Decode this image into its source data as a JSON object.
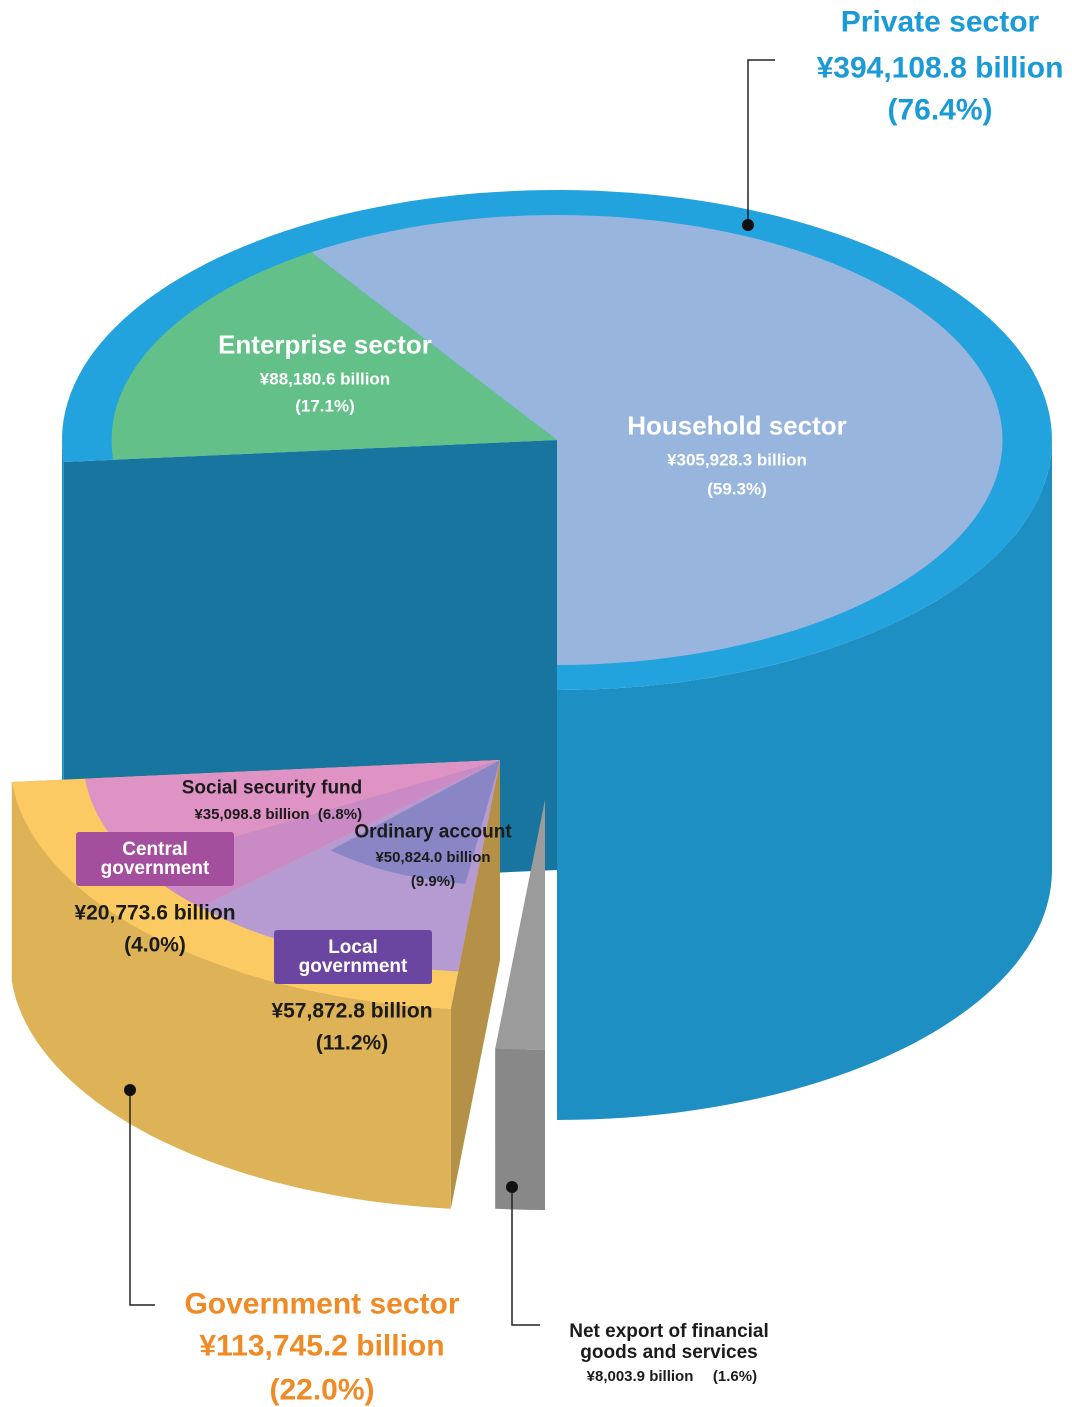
{
  "chart_data": {
    "type": "pie",
    "segments": [
      {
        "name": "Private sector",
        "value": 394108.8,
        "value_label": "¥394,108.8 billion",
        "percent": 76.4,
        "percent_label": "(76.4%)",
        "color": "#22a3de",
        "parts": [
          {
            "name": "Household sector",
            "value": 305928.3,
            "value_label": "¥305,928.3 billion",
            "percent": 59.3,
            "percent_label": "(59.3%)",
            "color": "#97b5dd"
          },
          {
            "name": "Enterprise sector",
            "value": 88180.6,
            "value_label": "¥88,180.6 billion",
            "percent": 17.1,
            "percent_label": "(17.1%)",
            "color": "#63c088"
          }
        ]
      },
      {
        "name": "Government sector",
        "value": 113745.2,
        "value_label": "¥113,745.2 billion",
        "percent": 22.0,
        "percent_label": "(22.0%)",
        "color": "#fcca62",
        "parts": [
          {
            "name": "Social security fund",
            "value": 35098.8,
            "value_label": "¥35,098.8 billion",
            "percent": 6.8,
            "percent_label": "(6.8%)",
            "color": "#df92c4"
          },
          {
            "name": "Central government",
            "value": 20773.6,
            "value_label": "¥20,773.6 billion",
            "percent": 4.0,
            "percent_label": "(4.0%)",
            "color": "#c98ac6"
          },
          {
            "name": "Local government",
            "value": 57872.8,
            "value_label": "¥57,872.8 billion",
            "percent": 11.2,
            "percent_label": "(11.2%)",
            "color": "#b59bd1",
            "parts": [
              {
                "name": "Ordinary account",
                "value": 50824.0,
                "value_label": "¥50,824.0 billion",
                "percent": 9.9,
                "percent_label": "(9.9%)",
                "color": "#8a86c6"
              }
            ]
          }
        ]
      },
      {
        "name": "Net export of financial goods and services",
        "value": 8003.9,
        "value_label": "¥8,003.9 billion",
        "percent": 1.6,
        "percent_label": "(1.6%)",
        "color": "#9b9b9b"
      }
    ]
  }
}
